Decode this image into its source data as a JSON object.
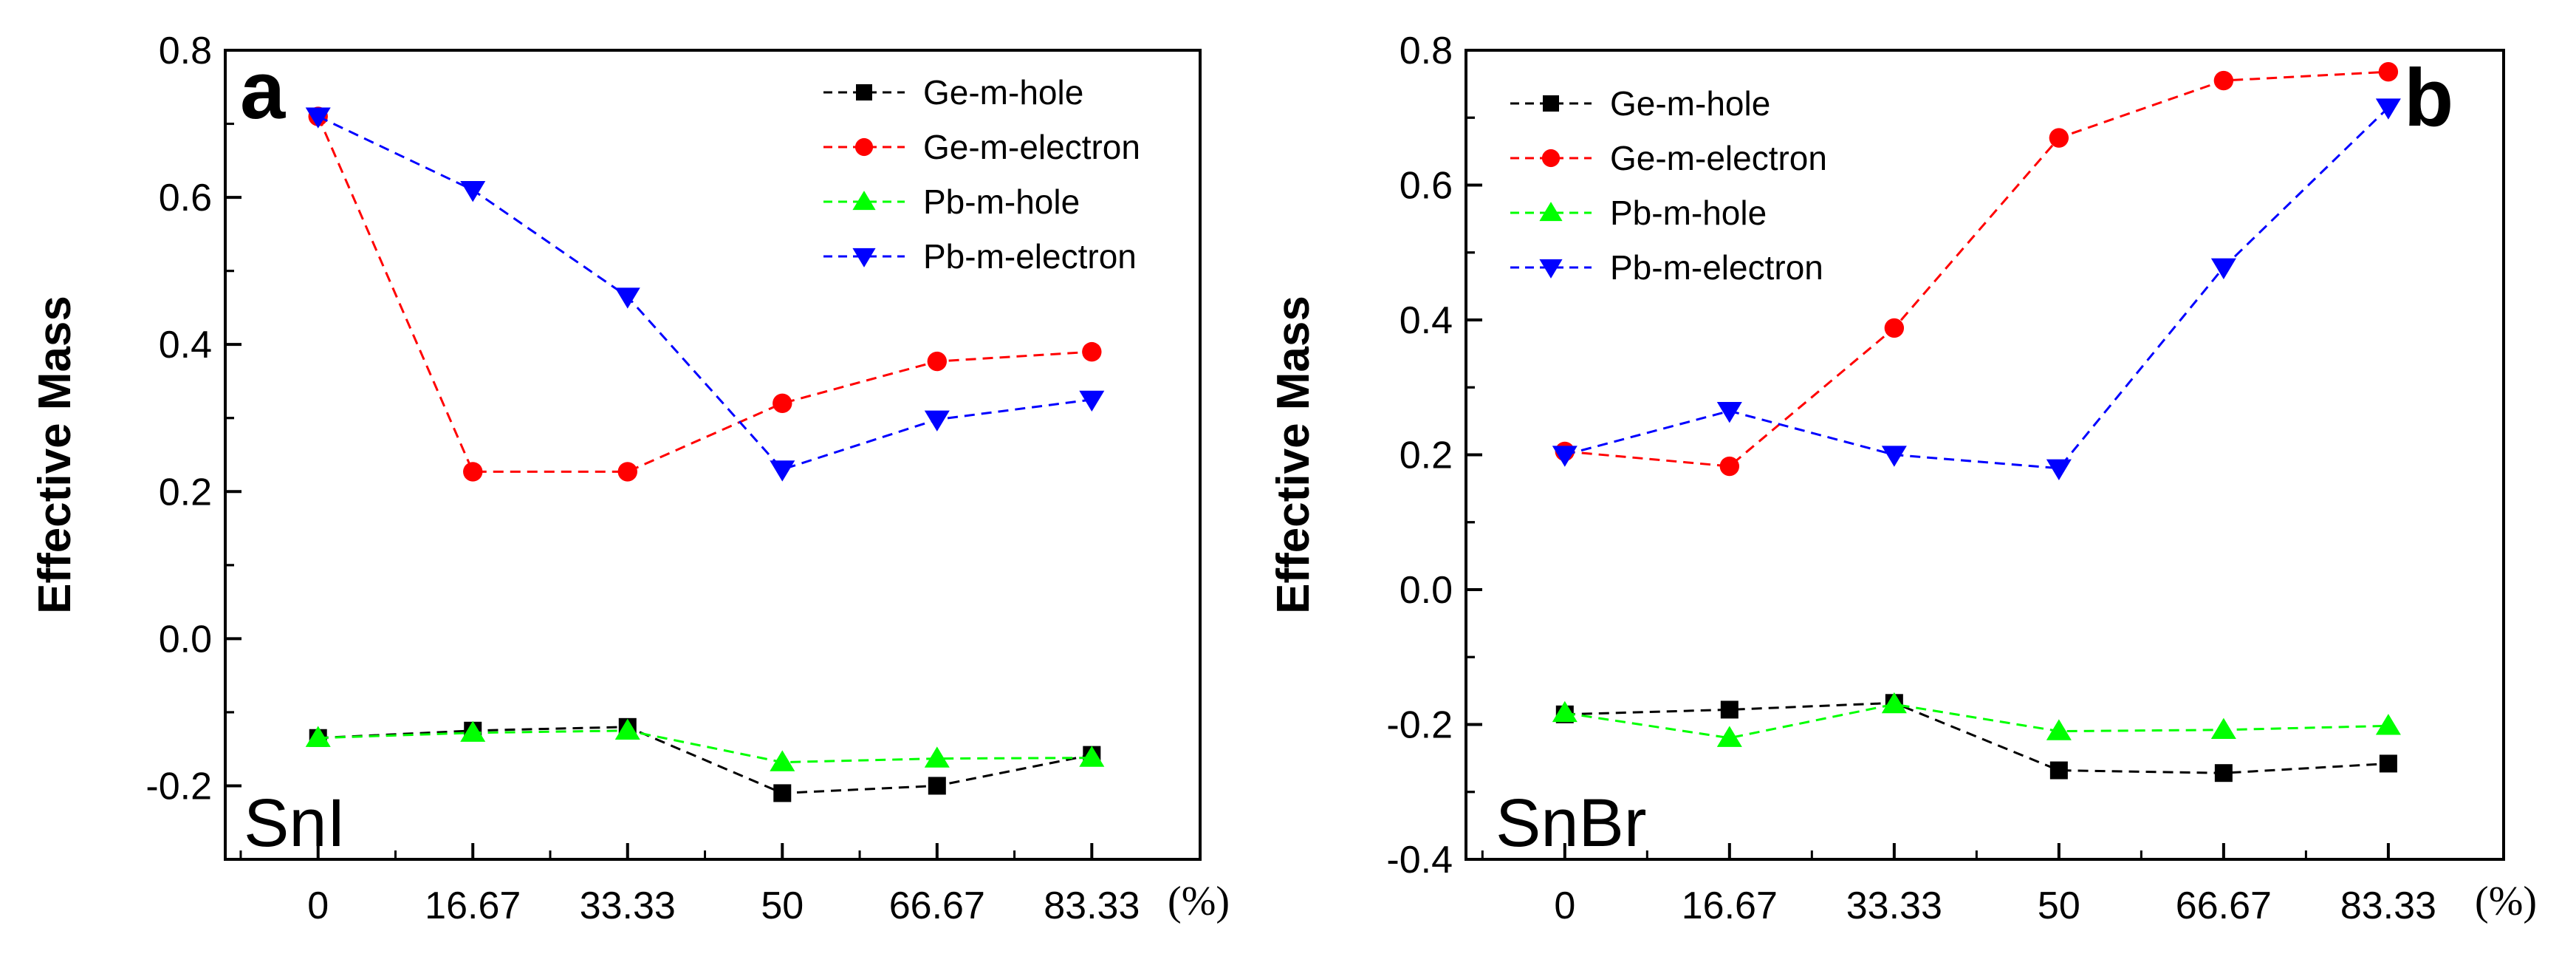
{
  "chart_data": [
    {
      "type": "line",
      "panel_letter": "a",
      "material": "SnI",
      "ylabel": "Effective Mass",
      "x_unit": "(%)",
      "categories": [
        "0",
        "16.67",
        "33.33",
        "50",
        "66.67",
        "83.33"
      ],
      "ylim": [
        -0.3,
        0.8
      ],
      "yticks": [
        -0.2,
        0.0,
        0.2,
        0.4,
        0.6,
        0.8
      ],
      "ytick_labels": [
        "-0.2",
        "0.0",
        "0.2",
        "0.4",
        "0.6",
        "0.8"
      ],
      "legend_position": "top-right",
      "series": [
        {
          "name": "Ge-m-hole",
          "color": "#000000",
          "marker": "square",
          "values": [
            -0.135,
            -0.125,
            -0.12,
            -0.21,
            -0.2,
            -0.158
          ]
        },
        {
          "name": "Ge-m-electron",
          "color": "#ff0000",
          "marker": "circle",
          "values": [
            0.71,
            0.227,
            0.227,
            0.32,
            0.377,
            0.39
          ]
        },
        {
          "name": "Pb-m-hole",
          "color": "#00ff00",
          "marker": "triangle-up",
          "values": [
            -0.135,
            -0.128,
            -0.125,
            -0.168,
            -0.163,
            -0.162
          ]
        },
        {
          "name": "Pb-m-electron",
          "color": "#0000ff",
          "marker": "triangle-down",
          "values": [
            0.71,
            0.61,
            0.465,
            0.23,
            0.298,
            0.325
          ]
        }
      ]
    },
    {
      "type": "line",
      "panel_letter": "b",
      "material": "SnBr",
      "ylabel": "Effective Mass",
      "x_unit": "(%)",
      "categories": [
        "0",
        "16.67",
        "33.33",
        "50",
        "66.67",
        "83.33"
      ],
      "ylim": [
        -0.4,
        0.8
      ],
      "yticks": [
        -0.4,
        -0.2,
        0.0,
        0.2,
        0.4,
        0.6,
        0.8
      ],
      "ytick_labels": [
        "-0.4",
        "-0.2",
        "0.0",
        "0.2",
        "0.4",
        "0.6",
        "0.8"
      ],
      "legend_position": "top-left",
      "series": [
        {
          "name": "Ge-m-hole",
          "color": "#000000",
          "marker": "square",
          "values": [
            -0.185,
            -0.178,
            -0.168,
            -0.268,
            -0.272,
            -0.258
          ]
        },
        {
          "name": "Ge-m-electron",
          "color": "#ff0000",
          "marker": "circle",
          "values": [
            0.205,
            0.183,
            0.388,
            0.67,
            0.755,
            0.768
          ]
        },
        {
          "name": "Pb-m-hole",
          "color": "#00ff00",
          "marker": "triangle-up",
          "values": [
            -0.183,
            -0.22,
            -0.17,
            -0.21,
            -0.208,
            -0.202
          ]
        },
        {
          "name": "Pb-m-electron",
          "color": "#0000ff",
          "marker": "triangle-down",
          "values": [
            0.2,
            0.265,
            0.2,
            0.18,
            0.478,
            0.715
          ]
        }
      ]
    }
  ]
}
